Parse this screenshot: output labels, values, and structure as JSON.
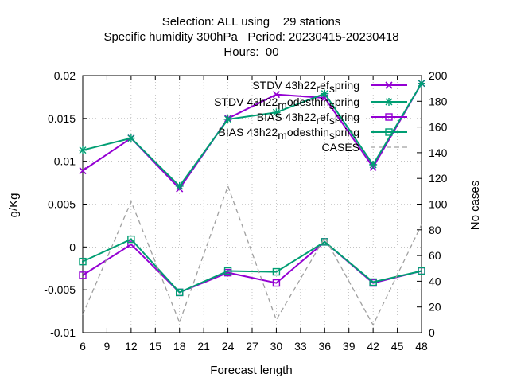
{
  "chart_data": {
    "type": "line",
    "title_lines": [
      "Selection: ALL using    29 stations",
      "Specific humidity 300hPa   Period: 20230415-20230418",
      "Hours:  00"
    ],
    "xlabel": "Forecast length",
    "ylabel": "g/Kg",
    "y2label": "No cases",
    "x_ticks": [
      "6",
      "9",
      "12",
      "15",
      "18",
      "21",
      "24",
      "27",
      "30",
      "33",
      "36",
      "39",
      "42",
      "45",
      "48"
    ],
    "y_ticks": [
      "-0.01",
      "-0.005",
      "0",
      "0.005",
      "0.01",
      "0.015",
      "0.02"
    ],
    "y2_ticks": [
      "0",
      "20",
      "40",
      "60",
      "80",
      "100",
      "120",
      "140",
      "160",
      "180",
      "200"
    ],
    "xlim": [
      6,
      48
    ],
    "ylim": [
      -0.01,
      0.02
    ],
    "y2lim": [
      0,
      200
    ],
    "grid": true,
    "legend_position": "top-right",
    "x": [
      6,
      12,
      18,
      24,
      30,
      36,
      42,
      48
    ],
    "series": [
      {
        "name": "STDV 43h22_ref_spring",
        "legend_main": "STDV 43h22",
        "legend_sub": "r",
        "legend_mid": "ef",
        "legend_sub2": "s",
        "legend_tail": "pring",
        "color": "#9400d3",
        "marker": "x",
        "axis": "y",
        "values": [
          0.0089,
          0.0127,
          0.0068,
          0.015,
          0.0178,
          0.0174,
          0.0093,
          0.0191
        ]
      },
      {
        "name": "STDV 43h22_modesthin_spring",
        "legend_main": "STDV 43h22",
        "legend_sub": "m",
        "legend_mid": "odesthin",
        "legend_sub2": "s",
        "legend_tail": "pring",
        "color": "#009e73",
        "marker": "star",
        "axis": "y",
        "values": [
          0.0113,
          0.0127,
          0.0071,
          0.0149,
          0.0157,
          0.0179,
          0.0096,
          0.0191
        ]
      },
      {
        "name": "BIAS 43h22_ref_spring",
        "legend_main": "BIAS 43h22",
        "legend_sub": "r",
        "legend_mid": "ef",
        "legend_sub2": "s",
        "legend_tail": "pring",
        "color": "#9400d3",
        "marker": "square",
        "axis": "y",
        "values": [
          -0.0033,
          0.0003,
          -0.0053,
          -0.003,
          -0.0042,
          0.0006,
          -0.0042,
          -0.0028
        ]
      },
      {
        "name": "BIAS 43h22_modesthin_spring",
        "legend_main": "BIAS 43h22",
        "legend_sub": "m",
        "legend_mid": "odesthin",
        "legend_sub2": "s",
        "legend_tail": "pring",
        "color": "#009e73",
        "marker": "square-dot",
        "axis": "y",
        "values": [
          -0.0017,
          0.0009,
          -0.0053,
          -0.0028,
          -0.0029,
          0.0006,
          -0.0041,
          -0.0028
        ]
      },
      {
        "name": "CASES",
        "legend_main": "CASES",
        "color": "#a0a0a0",
        "marker": "none",
        "dashed": true,
        "axis": "y2",
        "values": [
          14,
          102,
          8,
          114,
          10,
          74,
          6,
          84
        ]
      }
    ]
  }
}
